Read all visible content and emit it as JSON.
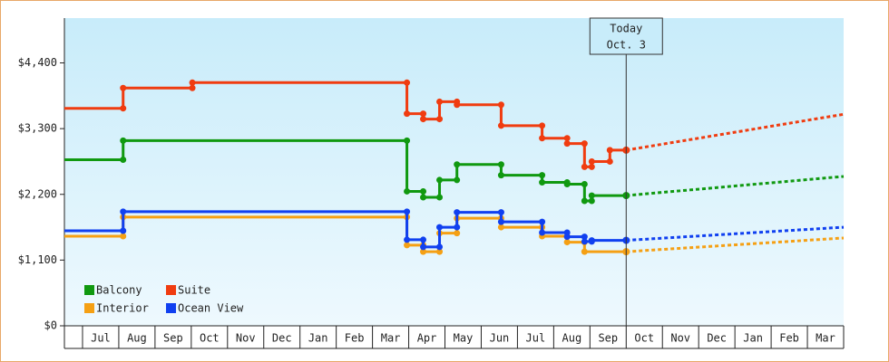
{
  "chart_data": {
    "type": "step",
    "xlim": [
      -0.5,
      21
    ],
    "ylim": [
      0,
      5150
    ],
    "xticks": [
      {
        "value": 0.5,
        "label": "Jul"
      },
      {
        "value": 1.5,
        "label": "Aug"
      },
      {
        "value": 2.5,
        "label": "Sep"
      },
      {
        "value": 3.5,
        "label": "Oct"
      },
      {
        "value": 4.5,
        "label": "Nov"
      },
      {
        "value": 5.5,
        "label": "Dec"
      },
      {
        "value": 6.5,
        "label": "Jan"
      },
      {
        "value": 7.5,
        "label": "Feb"
      },
      {
        "value": 8.5,
        "label": "Mar"
      },
      {
        "value": 9.5,
        "label": "Apr"
      },
      {
        "value": 10.5,
        "label": "May"
      },
      {
        "value": 11.5,
        "label": "Jun"
      },
      {
        "value": 12.5,
        "label": "Jul"
      },
      {
        "value": 13.5,
        "label": "Aug"
      },
      {
        "value": 14.5,
        "label": "Sep"
      },
      {
        "value": 15.5,
        "label": "Oct"
      },
      {
        "value": 16.5,
        "label": "Nov"
      },
      {
        "value": 17.5,
        "label": "Dec"
      },
      {
        "value": 18.5,
        "label": "Jan"
      },
      {
        "value": 19.5,
        "label": "Feb"
      },
      {
        "value": 20.5,
        "label": "Mar"
      }
    ],
    "yticks": [
      {
        "value": 0,
        "label": "$0"
      },
      {
        "value": 1100,
        "label": "$1,100"
      },
      {
        "value": 2200,
        "label": "$2,200"
      },
      {
        "value": 3300,
        "label": "$3,300"
      },
      {
        "value": 4400,
        "label": "$4,400"
      }
    ],
    "today": {
      "x": 15,
      "label": [
        "Today",
        "Oct. 3"
      ]
    },
    "projection_x": [
      15,
      21
    ],
    "legend": "bottom-left",
    "series": [
      {
        "name": "Balcony",
        "color": "#109910",
        "x": [
          -0.5,
          1.12,
          8.95,
          9.4,
          9.85,
          10.33,
          11.55,
          12.68,
          13.37,
          13.85,
          14.05
        ],
        "values": [
          2780,
          3100,
          2250,
          2150,
          2440,
          2700,
          2520,
          2400,
          2370,
          2090,
          2180
        ],
        "projection": [
          2180,
          2500
        ]
      },
      {
        "name": "Suite",
        "color": "#f03c10",
        "x": [
          -0.5,
          1.12,
          3.03,
          8.95,
          9.4,
          9.85,
          10.33,
          11.55,
          12.68,
          13.37,
          13.85,
          14.05,
          14.55
        ],
        "values": [
          3640,
          3980,
          4070,
          3550,
          3460,
          3750,
          3700,
          3350,
          3140,
          3050,
          2660,
          2750,
          2940
        ],
        "projection": [
          2940,
          3540
        ]
      },
      {
        "name": "Interior",
        "color": "#f5a014",
        "x": [
          -0.5,
          1.12,
          8.95,
          9.4,
          9.85,
          10.33,
          11.55,
          12.68,
          13.37,
          13.85
        ],
        "values": [
          1500,
          1820,
          1350,
          1240,
          1550,
          1800,
          1650,
          1500,
          1400,
          1240
        ],
        "projection": [
          1240,
          1470
        ]
      },
      {
        "name": "Ocean View",
        "color": "#1040f0",
        "x": [
          -0.5,
          1.12,
          8.95,
          9.4,
          9.85,
          10.33,
          11.55,
          12.68,
          13.37,
          13.85,
          14.05
        ],
        "values": [
          1590,
          1910,
          1440,
          1320,
          1650,
          1900,
          1740,
          1560,
          1490,
          1410,
          1430
        ],
        "projection": [
          1430,
          1650
        ]
      }
    ]
  }
}
